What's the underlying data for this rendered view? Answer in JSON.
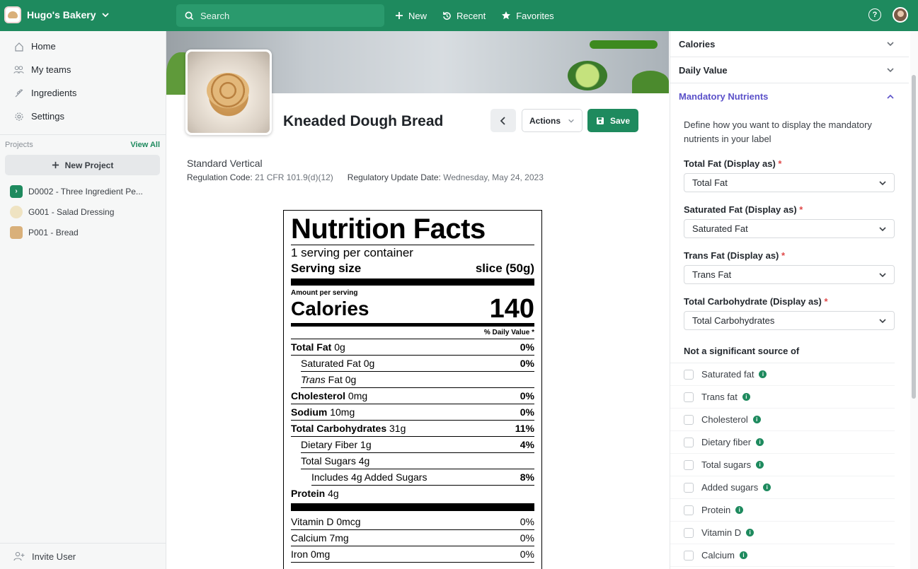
{
  "topbar": {
    "brand": "Hugo's Bakery",
    "search_placeholder": "Search",
    "new_label": "New",
    "recent_label": "Recent",
    "favorites_label": "Favorites"
  },
  "sidebar": {
    "nav": [
      "Home",
      "My teams",
      "Ingredients",
      "Settings"
    ],
    "projects_title": "Projects",
    "view_all": "View All",
    "new_project": "New Project",
    "projects": [
      {
        "label": "D0002 - Three Ingredient Pe...",
        "icon": "chevron-icon",
        "color": "#1e8a5e"
      },
      {
        "label": "G001 - Salad Dressing",
        "icon": "salad-icon",
        "color": "#e8d9b0"
      },
      {
        "label": "P001 - Bread",
        "icon": "bread-icon",
        "color": "#d9b07a"
      }
    ],
    "invite": "Invite User"
  },
  "product": {
    "title": "Kneaded Dough Bread",
    "actions_label": "Actions",
    "save_label": "Save",
    "standard": "Standard Vertical",
    "regulation_label": "Regulation Code:",
    "regulation_value": "21 CFR 101.9(d)(12)",
    "update_label": "Regulatory Update Date:",
    "update_value": "Wednesday, May 24, 2023"
  },
  "label": {
    "title": "Nutrition Facts",
    "servings": "1 serving per container",
    "serving_size_label": "Serving size",
    "serving_size_value": "slice (50g)",
    "amount_per_serving": "Amount per serving",
    "calories_label": "Calories",
    "calories_value": "140",
    "dv_header": "% Daily Value *",
    "rows": [
      {
        "name": "Total Fat",
        "amount": "0g",
        "pct": "0%"
      },
      {
        "name": "Saturated Fat",
        "amount": "0g",
        "pct": "0%"
      },
      {
        "name": "Trans",
        "name2": "Fat",
        "amount": "0g",
        "pct": ""
      },
      {
        "name": "Cholesterol",
        "amount": "0mg",
        "pct": "0%"
      },
      {
        "name": "Sodium",
        "amount": "10mg",
        "pct": "0%"
      },
      {
        "name": "Total Carbohydrates",
        "amount": "31g",
        "pct": "11%"
      },
      {
        "name": "Dietary Fiber",
        "amount": "1g",
        "pct": "4%"
      },
      {
        "name": "Total Sugars",
        "amount": "4g",
        "pct": ""
      },
      {
        "name": "Includes 4g Added Sugars",
        "amount": "",
        "pct": "8%"
      },
      {
        "name": "Protein",
        "amount": "4g",
        "pct": ""
      }
    ],
    "vitamins": [
      {
        "name": "Vitamin D 0mcg",
        "pct": "0%"
      },
      {
        "name": "Calcium 7mg",
        "pct": "0%"
      },
      {
        "name": "Iron 0mg",
        "pct": "0%"
      }
    ]
  },
  "panel": {
    "calories": "Calories",
    "daily_value": "Daily Value",
    "mandatory": "Mandatory Nutrients",
    "description": "Define how you want to display the mandatory nutrients in your label",
    "fields": [
      {
        "label": "Total Fat (Display as)",
        "value": "Total Fat"
      },
      {
        "label": "Saturated Fat (Display as)",
        "value": "Saturated Fat"
      },
      {
        "label": "Trans Fat (Display as)",
        "value": "Trans Fat"
      },
      {
        "label": "Total Carbohydrate (Display as)",
        "value": "Total Carbohydrates"
      }
    ],
    "required_mark": "*",
    "not_significant_title": "Not a significant source of",
    "checkboxes": [
      "Saturated fat",
      "Trans fat",
      "Cholesterol",
      "Dietary fiber",
      "Total sugars",
      "Added sugars",
      "Protein",
      "Vitamin D",
      "Calcium"
    ]
  },
  "colors": {
    "brand_green": "#1e8a5e",
    "accent_purple": "#5b51c9"
  }
}
